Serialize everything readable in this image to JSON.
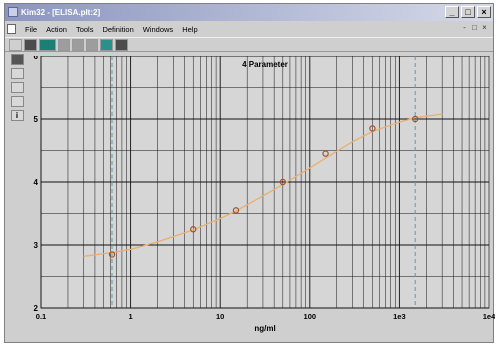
{
  "window": {
    "title": "Kim32 - [ELISA.plt:2]",
    "controls": {
      "minimize": "_",
      "maximize": "□",
      "close": "×"
    }
  },
  "menu": {
    "items": [
      "File",
      "Action",
      "Tools",
      "Definition",
      "Windows",
      "Help"
    ],
    "mdi_controls": [
      "-",
      "□",
      "×"
    ]
  },
  "toolbar": {
    "buttons": [
      "new-icon",
      "open-icon",
      "curve-icon",
      "blank-icon",
      "blank-icon",
      "blank-icon",
      "plot-icon",
      "print-icon"
    ]
  },
  "sidebar": {
    "buttons": [
      "plot-icon",
      "grid-icon",
      "table-icon",
      "axis-icon",
      "info-icon"
    ],
    "info_label": "i"
  },
  "colors": {
    "plot_background": "#d6d6d6",
    "grid_major": "#000000",
    "curve": "#e8b070",
    "points": "#a0522d",
    "marker_lines": "#5b9aa8"
  },
  "chart_data": {
    "type": "scatter",
    "title": "4 Parameter",
    "xlabel": "ng/ml",
    "ylabel": "",
    "x_scale": "log",
    "xlim": [
      0.1,
      10000
    ],
    "ylim": [
      2,
      6
    ],
    "x_ticks": [
      "0.1",
      "1",
      "10",
      "100",
      "1e3",
      "1e4"
    ],
    "y_ticks": [
      "2",
      "3",
      "4",
      "5",
      "6"
    ],
    "grid": true,
    "series": [
      {
        "type": "scatter",
        "x": [
          0.62,
          5,
          15,
          50,
          150,
          500,
          1500
        ],
        "y": [
          2.85,
          3.25,
          3.55,
          4.0,
          4.45,
          4.85,
          5.0
        ]
      },
      {
        "type": "line",
        "model": "4-parameter logistic fit",
        "x": [
          0.3,
          0.62,
          1,
          2,
          5,
          10,
          15,
          30,
          50,
          100,
          150,
          300,
          500,
          1000,
          1500,
          3000
        ],
        "y": [
          2.82,
          2.88,
          2.93,
          3.05,
          3.24,
          3.42,
          3.54,
          3.78,
          3.96,
          4.22,
          4.38,
          4.64,
          4.8,
          4.95,
          5.02,
          5.08
        ]
      }
    ],
    "vertical_markers_x": [
      0.62,
      1500
    ]
  }
}
